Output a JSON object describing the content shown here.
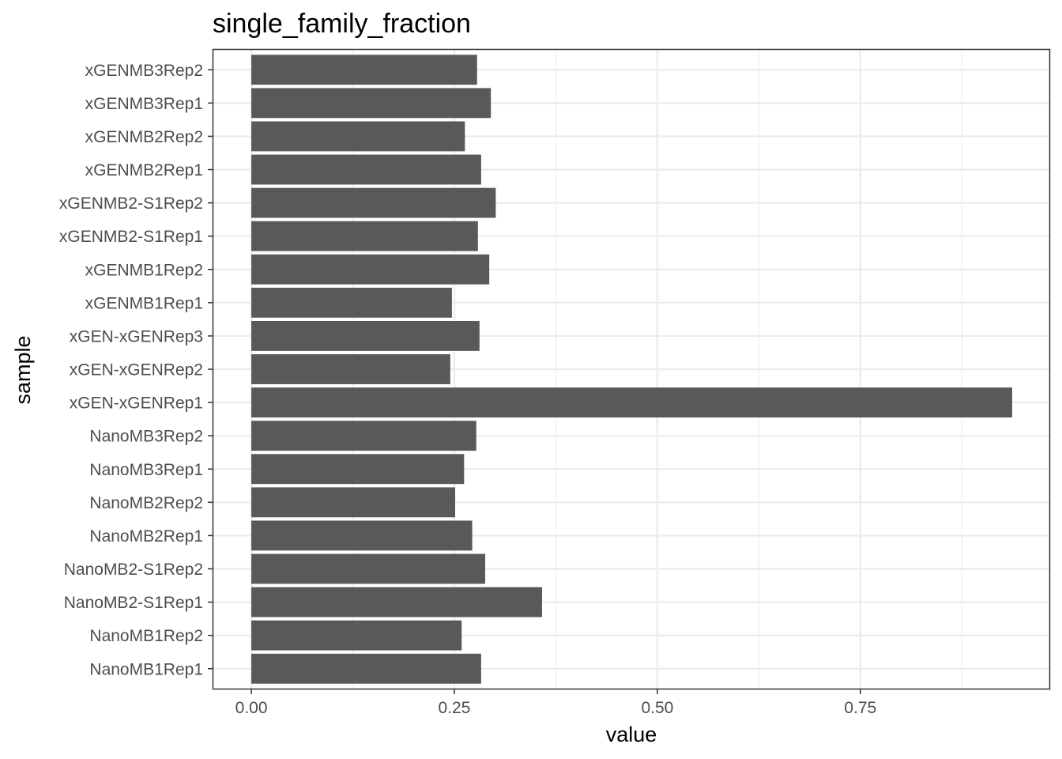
{
  "chart_data": {
    "type": "bar",
    "orientation": "horizontal",
    "title": "single_family_fraction",
    "xlabel": "value",
    "ylabel": "sample",
    "xlim": [
      -0.0468,
      0.9828
    ],
    "x_ticks": [
      0.0,
      0.25,
      0.5,
      0.75
    ],
    "x_tick_labels": [
      "0.00",
      "0.25",
      "0.50",
      "0.75"
    ],
    "x_minor_ticks": [
      0.125,
      0.375,
      0.625,
      0.875
    ],
    "bar_color": "#595959",
    "grid": true,
    "categories": [
      "NanoMB1Rep1",
      "NanoMB1Rep2",
      "NanoMB2-S1Rep1",
      "NanoMB2-S1Rep2",
      "NanoMB2Rep1",
      "NanoMB2Rep2",
      "NanoMB3Rep1",
      "NanoMB3Rep2",
      "xGEN-xGENRep1",
      "xGEN-xGENRep2",
      "xGEN-xGENRep3",
      "xGENMB1Rep1",
      "xGENMB1Rep2",
      "xGENMB2-S1Rep1",
      "xGENMB2-S1Rep2",
      "xGENMB2Rep1",
      "xGENMB2Rep2",
      "xGENMB3Rep1",
      "xGENMB3Rep2"
    ],
    "values": [
      0.283,
      0.259,
      0.358,
      0.288,
      0.272,
      0.251,
      0.262,
      0.277,
      0.937,
      0.245,
      0.281,
      0.247,
      0.293,
      0.279,
      0.301,
      0.283,
      0.263,
      0.295,
      0.278
    ]
  }
}
